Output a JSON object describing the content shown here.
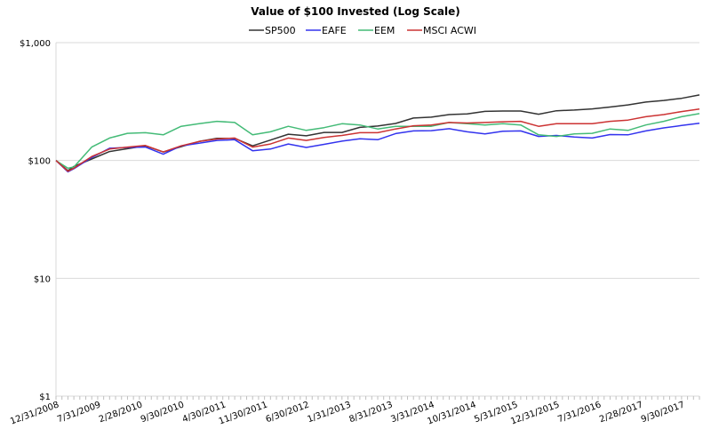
{
  "chart_data": {
    "type": "line",
    "title": "Value of $100 Invested (Log Scale)",
    "xlabel": "",
    "ylabel": "",
    "yscale": "log",
    "ylim": [
      1,
      1000
    ],
    "y_ticks": [
      1,
      10,
      100,
      1000
    ],
    "y_tick_labels": [
      "$1",
      "$10",
      "$100",
      "$1,000"
    ],
    "grid": "horizontal",
    "legend_position": "top",
    "x_months_total": 108,
    "x_tick_months": [
      0,
      7,
      14,
      21,
      28,
      35,
      42,
      49,
      56,
      63,
      70,
      77,
      84,
      91,
      98,
      105
    ],
    "x_tick_labels": [
      "12/31/2008",
      "7/31/2009",
      "2/28/2010",
      "9/30/2010",
      "4/30/2011",
      "11/30/2011",
      "6/30/2012",
      "1/31/2013",
      "8/31/2013",
      "3/31/2014",
      "10/31/2014",
      "5/31/2015",
      "12/31/2015",
      "7/31/2016",
      "2/28/2017",
      "9/30/2017"
    ],
    "x_months": [
      0,
      2,
      3,
      6,
      9,
      12,
      15,
      18,
      21,
      24,
      27,
      30,
      33,
      36,
      39,
      42,
      45,
      48,
      51,
      54,
      57,
      60,
      63,
      66,
      69,
      72,
      75,
      78,
      81,
      84,
      87,
      90,
      93,
      96,
      99,
      102,
      105,
      108
    ],
    "series": [
      {
        "name": "SP500",
        "color": "#333333",
        "values": [
          100,
          82,
          89,
          103,
          119,
          126,
          133,
          118,
          131,
          145,
          154,
          154,
          133,
          149,
          167,
          162,
          173,
          173,
          191,
          196,
          206,
          229,
          233,
          245,
          248,
          261,
          263,
          263,
          247,
          264,
          268,
          274,
          284,
          296,
          313,
          323,
          337,
          360
        ]
      },
      {
        "name": "EAFE",
        "color": "#3333ee",
        "values": [
          100,
          80,
          85,
          106,
          127,
          129,
          130,
          113,
          133,
          140,
          148,
          150,
          121,
          125,
          138,
          129,
          137,
          146,
          153,
          150,
          169,
          178,
          179,
          186,
          175,
          168,
          177,
          178,
          160,
          163,
          158,
          155,
          166,
          165,
          178,
          189,
          198,
          207
        ]
      },
      {
        "name": "EEM",
        "color": "#44bb77",
        "values": [
          100,
          86,
          88,
          130,
          155,
          170,
          172,
          165,
          195,
          205,
          215,
          210,
          165,
          175,
          195,
          180,
          190,
          205,
          200,
          185,
          195,
          195,
          195,
          210,
          205,
          200,
          205,
          200,
          165,
          160,
          168,
          170,
          185,
          180,
          200,
          215,
          235,
          250
        ]
      },
      {
        "name": "MSCI ACWI",
        "color": "#cc3333",
        "values": [
          100,
          81,
          86,
          108,
          125,
          130,
          134,
          118,
          133,
          145,
          152,
          155,
          130,
          138,
          155,
          148,
          157,
          163,
          172,
          172,
          185,
          197,
          200,
          210,
          208,
          210,
          213,
          215,
          195,
          205,
          205,
          205,
          215,
          220,
          235,
          245,
          260,
          273
        ]
      }
    ]
  }
}
